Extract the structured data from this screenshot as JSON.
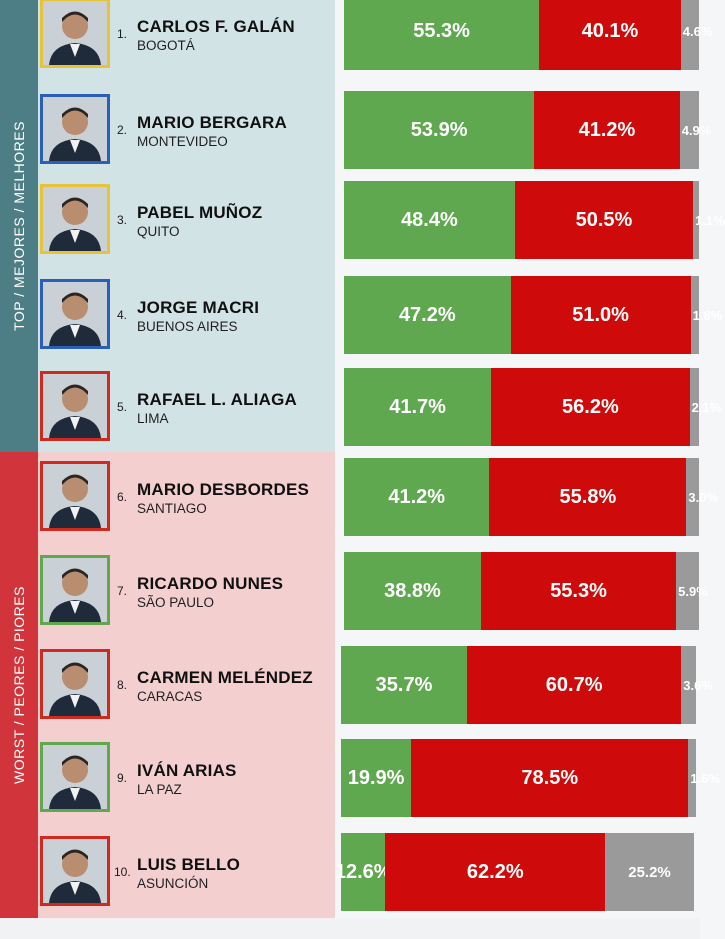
{
  "sections": {
    "top_label": "TOP / MEJORES / MELHORES",
    "worst_label": "WORST / PEORES / PIORES"
  },
  "colors": {
    "approve": "#5fa84f",
    "disapprove": "#cf0a0a",
    "no_answer": "#9a9a9a",
    "top_band": "#4d7d85",
    "worst_band": "#d2343b",
    "frame_gold": "#e6c43a",
    "frame_blue": "#2a5fb8",
    "frame_red": "#cf2a20",
    "frame_green": "#5fa84f"
  },
  "chart_data": {
    "type": "bar",
    "orientation": "horizontal",
    "stacked": true,
    "categories": [
      "CARLOS F. GALÁN",
      "MARIO BERGARA",
      "PABEL MUÑOZ",
      "JORGE MACRI",
      "RAFAEL L. ALIAGA",
      "MARIO DESBORDES",
      "RICARDO NUNES",
      "CARMEN MELÉNDEZ",
      "IVÁN ARIAS",
      "LUIS BELLO"
    ],
    "series": [
      {
        "values": [
          55.3,
          53.9,
          48.4,
          47.2,
          41.7,
          41.2,
          38.8,
          35.7,
          19.9,
          12.6
        ]
      },
      {
        "values": [
          40.1,
          41.2,
          50.5,
          51.0,
          56.2,
          55.8,
          55.3,
          60.7,
          78.5,
          62.2
        ]
      },
      {
        "values": [
          4.6,
          4.9,
          1.1,
          1.8,
          2.1,
          3.0,
          5.9,
          3.6,
          1.6,
          25.2
        ]
      }
    ],
    "labels": [
      [
        "55.3%",
        "40.1%",
        "4.6%"
      ],
      [
        "53.9%",
        "41.2%",
        "4.9%"
      ],
      [
        "48.4%",
        "50.5%",
        "1.1%"
      ],
      [
        "47.2%",
        "51.0%",
        "1.8%"
      ],
      [
        "41.7%",
        "56.2%",
        "2.1%"
      ],
      [
        "41.2%",
        "55.8%",
        "3.0%"
      ],
      [
        "38.8%",
        "55.3%",
        "5.9%"
      ],
      [
        "35.7%",
        "60.7%",
        "3.6%"
      ],
      [
        "19.9%",
        "78.5%",
        "1.6%"
      ],
      [
        "12.6%",
        "62.2%",
        "25.2%"
      ]
    ]
  },
  "rows": [
    {
      "rank": "1.",
      "name": "CARLOS F. GALÁN",
      "city": "BOGOTÁ",
      "frame": "gold"
    },
    {
      "rank": "2.",
      "name": "MARIO BERGARA",
      "city": "MONTEVIDEO",
      "frame": "blue"
    },
    {
      "rank": "3.",
      "name": "PABEL MUÑOZ",
      "city": "QUITO",
      "frame": "gold"
    },
    {
      "rank": "4.",
      "name": "JORGE MACRI",
      "city": "BUENOS AIRES",
      "frame": "blue"
    },
    {
      "rank": "5.",
      "name": "RAFAEL L. ALIAGA",
      "city": "LIMA",
      "frame": "red"
    },
    {
      "rank": "6.",
      "name": "MARIO DESBORDES",
      "city": "SANTIAGO",
      "frame": "red"
    },
    {
      "rank": "7.",
      "name": "RICARDO NUNES",
      "city": "SÃO PAULO",
      "frame": "green"
    },
    {
      "rank": "8.",
      "name": "CARMEN MELÉNDEZ",
      "city": "CARACAS",
      "frame": "red"
    },
    {
      "rank": "9.",
      "name": "IVÁN ARIAS",
      "city": "LA PAZ",
      "frame": "green"
    },
    {
      "rank": "10.",
      "name": "LUIS BELLO",
      "city": "ASUNCIÓN",
      "frame": "red"
    }
  ]
}
